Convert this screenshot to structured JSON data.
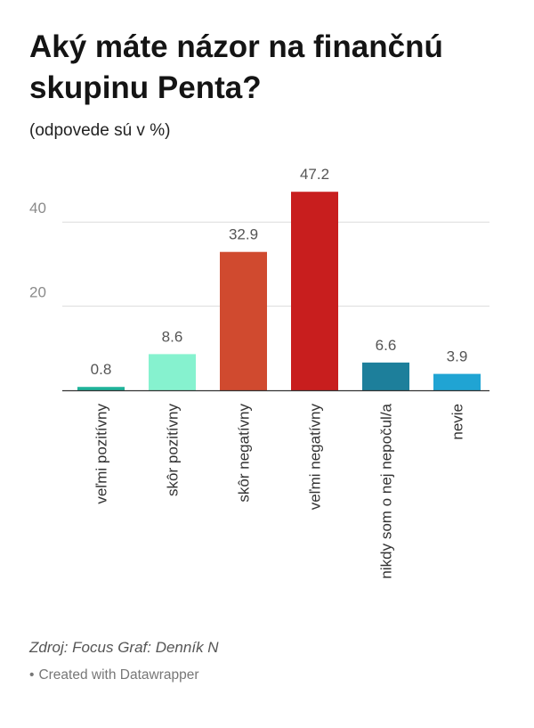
{
  "header": {
    "title": "Aký máte názor na finančnú skupinu Penta?",
    "subtitle": "(odpovede sú v %)"
  },
  "footer": {
    "source": "Zdroj: Focus Graf: Denník N",
    "credit_dot": "•",
    "credit": "Created with Datawrapper"
  },
  "chart_data": {
    "type": "bar",
    "title": "Aký máte názor na finančnú skupinu Penta?",
    "subtitle": "(odpovede sú v %)",
    "xlabel": "",
    "ylabel": "",
    "ylim": [
      0,
      50
    ],
    "yticks": [
      20,
      40
    ],
    "grid": true,
    "categories": [
      "veľmi pozitívny",
      "skôr pozitívny",
      "skôr negatívny",
      "veľmi negatívny",
      "nikdy som o nej nepočul/a",
      "nevie"
    ],
    "values": [
      0.8,
      8.6,
      32.9,
      47.2,
      6.6,
      3.9
    ],
    "value_labels": [
      "0.8",
      "8.6",
      "32.9",
      "47.2",
      "6.6",
      "3.9"
    ],
    "colors": [
      "#1fb39a",
      "#86f2cf",
      "#d04a2f",
      "#c81e1e",
      "#1d7f9b",
      "#20a4d3"
    ]
  }
}
